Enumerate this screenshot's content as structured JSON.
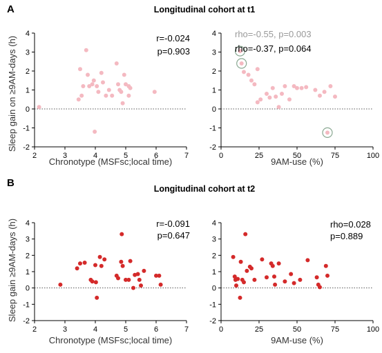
{
  "figure": {
    "sections": [
      {
        "letter": "A",
        "title": "Longitudinal cohort at t1"
      },
      {
        "letter": "B",
        "title": "Longitudinal cohort at t2"
      }
    ],
    "shared_ylabels": [
      "Sleep gain on ≥9AM-days (h)",
      "Sleep gain ≥9AM-days (h)"
    ]
  },
  "colors": {
    "t1_points": "#f4b9c1",
    "t2_points": "#d42a2a",
    "highlight_ring": "#8aa892",
    "gray_annotation": "#999999",
    "black_annotation": "#000000"
  },
  "chart_data": [
    {
      "type": "scatter",
      "id": "A-left",
      "xlabel": "Chronotype (MSFsc;local time)",
      "ylabel": "Sleep gain on ≥9AM-days (h)",
      "xlim": [
        2,
        7
      ],
      "ylim": [
        -2,
        4
      ],
      "xticks": [
        2,
        3,
        4,
        5,
        6,
        7
      ],
      "yticks": [
        -2,
        -1,
        0,
        1,
        2,
        3,
        4
      ],
      "ref_line_y": 0,
      "color": "#f4b9c1",
      "annotations": [
        {
          "text": "r=-0.024",
          "color": "#000000"
        },
        {
          "text": "p=0.903",
          "color": "#000000"
        }
      ],
      "points": [
        [
          2.15,
          0.1
        ],
        [
          3.45,
          0.5
        ],
        [
          3.5,
          2.1
        ],
        [
          3.55,
          0.7
        ],
        [
          3.6,
          1.2
        ],
        [
          3.7,
          3.1
        ],
        [
          3.75,
          1.8
        ],
        [
          3.8,
          1.2
        ],
        [
          3.9,
          1.3
        ],
        [
          3.95,
          1.5
        ],
        [
          3.98,
          -1.2
        ],
        [
          4.05,
          1.2
        ],
        [
          4.1,
          0.9
        ],
        [
          4.2,
          1.9
        ],
        [
          4.25,
          1.4
        ],
        [
          4.35,
          0.7
        ],
        [
          4.45,
          1.0
        ],
        [
          4.55,
          0.7
        ],
        [
          4.7,
          2.4
        ],
        [
          4.75,
          1.3
        ],
        [
          4.8,
          1.0
        ],
        [
          4.85,
          0.9
        ],
        [
          4.9,
          0.3
        ],
        [
          4.95,
          1.8
        ],
        [
          5.0,
          1.3
        ],
        [
          5.1,
          1.2
        ],
        [
          5.1,
          0.7
        ],
        [
          5.15,
          1.1
        ],
        [
          5.95,
          0.9
        ]
      ]
    },
    {
      "type": "scatter",
      "id": "A-right",
      "xlabel": "9AM-use (%)",
      "xlim": [
        0,
        100
      ],
      "ylim": [
        -2,
        4
      ],
      "xticks": [
        0,
        25,
        50,
        75,
        100
      ],
      "yticks": [
        -2,
        -1,
        0,
        1,
        2,
        3,
        4
      ],
      "ref_line_y": 0,
      "color": "#f4b9c1",
      "annotations": [
        {
          "text": "rho=-0.55, p=0.003",
          "color": "#999999"
        },
        {
          "text": "rho=-0.37, p=0.064",
          "color": "#000000"
        }
      ],
      "highlighted_points": [
        [
          12.5,
          3.05
        ],
        [
          13.5,
          2.4
        ],
        [
          70,
          -1.25
        ]
      ],
      "points": [
        [
          12.5,
          3.05
        ],
        [
          13.5,
          2.4
        ],
        [
          15,
          1.95
        ],
        [
          18,
          1.8
        ],
        [
          20,
          1.5
        ],
        [
          22,
          1.3
        ],
        [
          24,
          2.1
        ],
        [
          24,
          0.35
        ],
        [
          26,
          0.5
        ],
        [
          30,
          0.8
        ],
        [
          32,
          0.6
        ],
        [
          34,
          1.1
        ],
        [
          36,
          0.65
        ],
        [
          38,
          0.1
        ],
        [
          40,
          0.8
        ],
        [
          42,
          1.2
        ],
        [
          45,
          0.5
        ],
        [
          48,
          1.2
        ],
        [
          50,
          1.1
        ],
        [
          53,
          1.1
        ],
        [
          56,
          1.15
        ],
        [
          62,
          1.0
        ],
        [
          65,
          0.7
        ],
        [
          68,
          0.9
        ],
        [
          70,
          -1.25
        ],
        [
          72,
          1.2
        ],
        [
          75,
          0.65
        ]
      ]
    },
    {
      "type": "scatter",
      "id": "B-left",
      "xlabel": "Chronotype (MSFsc;local time)",
      "ylabel": "Sleep gain ≥9AM-days (h)",
      "xlim": [
        2,
        7
      ],
      "ylim": [
        -2,
        4
      ],
      "xticks": [
        2,
        3,
        4,
        5,
        6,
        7
      ],
      "yticks": [
        -2,
        -1,
        0,
        1,
        2,
        3,
        4
      ],
      "ref_line_y": 0,
      "color": "#d42a2a",
      "annotations": [
        {
          "text": "r=-0.091",
          "color": "#000000"
        },
        {
          "text": "p=0.647",
          "color": "#000000"
        }
      ],
      "points": [
        [
          2.85,
          0.2
        ],
        [
          3.4,
          1.2
        ],
        [
          3.5,
          1.5
        ],
        [
          3.65,
          1.55
        ],
        [
          3.85,
          0.5
        ],
        [
          3.9,
          0.4
        ],
        [
          4.0,
          1.4
        ],
        [
          4.02,
          0.35
        ],
        [
          4.05,
          -0.6
        ],
        [
          4.15,
          1.9
        ],
        [
          4.2,
          1.35
        ],
        [
          4.3,
          1.75
        ],
        [
          4.7,
          0.75
        ],
        [
          4.75,
          0.6
        ],
        [
          4.85,
          1.6
        ],
        [
          4.87,
          3.3
        ],
        [
          4.9,
          1.35
        ],
        [
          5.0,
          0.5
        ],
        [
          5.1,
          0.5
        ],
        [
          5.15,
          1.65
        ],
        [
          5.25,
          0.0
        ],
        [
          5.3,
          0.8
        ],
        [
          5.4,
          0.85
        ],
        [
          5.45,
          0.5
        ],
        [
          5.5,
          0.15
        ],
        [
          5.6,
          1.05
        ],
        [
          6.0,
          0.75
        ],
        [
          6.1,
          0.75
        ],
        [
          6.15,
          0.2
        ]
      ]
    },
    {
      "type": "scatter",
      "id": "B-right",
      "xlabel": "9AM-use (%)",
      "xlim": [
        0,
        100
      ],
      "ylim": [
        -2,
        4
      ],
      "xticks": [
        0,
        25,
        50,
        75,
        100
      ],
      "yticks": [
        -2,
        -1,
        0,
        1,
        2,
        3,
        4
      ],
      "ref_line_y": 0,
      "color": "#d42a2a",
      "annotations": [
        {
          "text": "rho=0.028",
          "color": "#000000"
        },
        {
          "text": "p=0.889",
          "color": "#000000"
        }
      ],
      "points": [
        [
          8,
          1.9
        ],
        [
          9,
          0.7
        ],
        [
          9.5,
          0.5
        ],
        [
          10,
          0.15
        ],
        [
          11,
          0.55
        ],
        [
          12.5,
          -0.6
        ],
        [
          13,
          1.6
        ],
        [
          14,
          0.5
        ],
        [
          15,
          0.35
        ],
        [
          16,
          3.3
        ],
        [
          17,
          1.05
        ],
        [
          19,
          1.3
        ],
        [
          20,
          1.2
        ],
        [
          22,
          0.5
        ],
        [
          27,
          1.75
        ],
        [
          30,
          0.65
        ],
        [
          33,
          1.5
        ],
        [
          34,
          1.35
        ],
        [
          35,
          0.7
        ],
        [
          35.5,
          0.2
        ],
        [
          38,
          1.5
        ],
        [
          42,
          0.4
        ],
        [
          46,
          0.85
        ],
        [
          48,
          0.3
        ],
        [
          52,
          0.5
        ],
        [
          57,
          1.7
        ],
        [
          63,
          0.65
        ],
        [
          64,
          0.2
        ],
        [
          65,
          0.05
        ],
        [
          69,
          1.35
        ],
        [
          70,
          0.75
        ]
      ]
    }
  ]
}
